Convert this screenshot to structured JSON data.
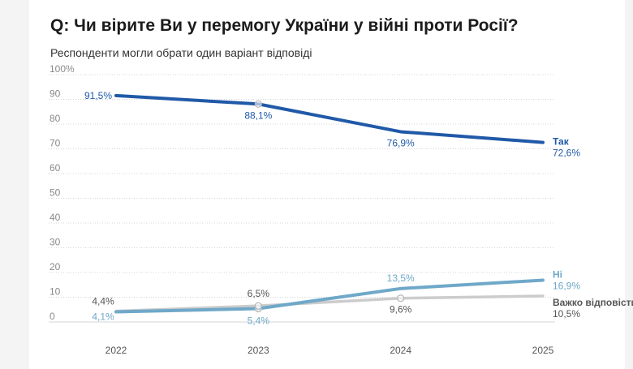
{
  "title": "Q: Чи вірите Ви у перемогу України у війні проти Росії?",
  "subtitle": "Респонденти могли обрати один варіант відповіді",
  "colors": {
    "yes": "#2059a8",
    "no": "#6fa8c9",
    "hard": "#cccccc",
    "grid": "#d5d5d5",
    "tick": "#8a8a8a"
  },
  "chart_data": {
    "type": "line",
    "x": [
      "2022",
      "2023",
      "2024",
      "2025"
    ],
    "ylim": [
      0,
      100
    ],
    "yticks": [
      "0",
      "10",
      "20",
      "30",
      "40",
      "50",
      "60",
      "70",
      "80",
      "90",
      "100%"
    ],
    "grid": true,
    "series": [
      {
        "name": "Так",
        "color": "#2059a8",
        "values": [
          91.5,
          88.1,
          76.9,
          72.6
        ],
        "labels": [
          "91,5%",
          "88,1%",
          "76,9%",
          "72,6%"
        ]
      },
      {
        "name": "Ні",
        "color": "#6fa8c9",
        "values": [
          4.1,
          5.4,
          13.5,
          16.9
        ],
        "labels": [
          "4,1%",
          "5,4%",
          "13,5%",
          "16,9%"
        ]
      },
      {
        "name": "Важко відповісти",
        "color": "#cccccc",
        "values": [
          4.4,
          6.5,
          9.6,
          10.5
        ],
        "labels": [
          "4,4%",
          "6,5%",
          "9,6%",
          "10,5%"
        ]
      }
    ]
  }
}
